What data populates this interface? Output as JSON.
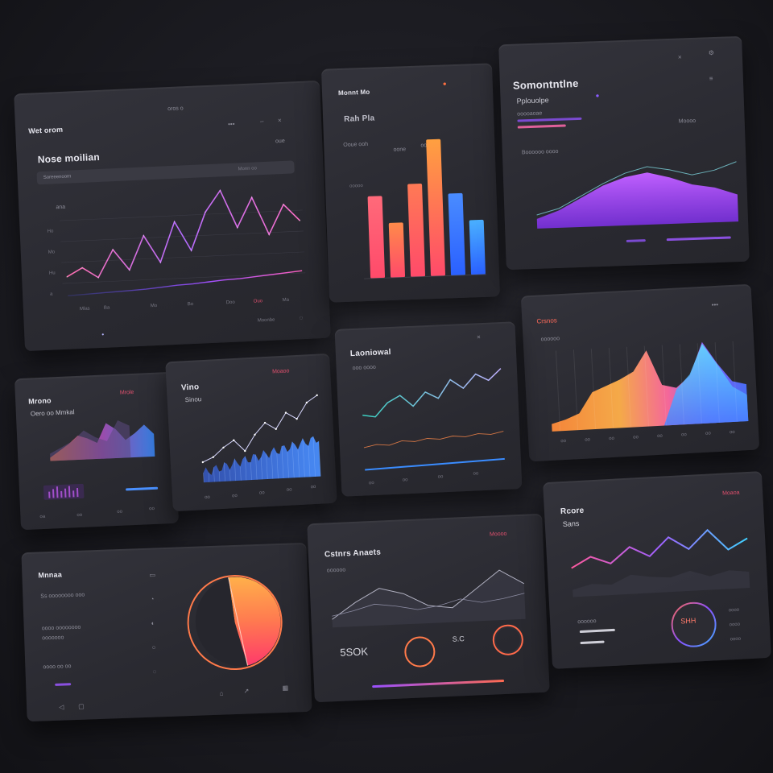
{
  "colors": {
    "background": "#1c1c22",
    "card": "#2d2d34",
    "purple": "#9b4dff",
    "pink": "#ff5fa8",
    "orange": "#ff8a3d",
    "cyan": "#3fc6ff",
    "blue": "#3a7bff",
    "red": "#e0506e"
  },
  "card1": {
    "header": "Wet orom",
    "top_label": "oros o",
    "title": "Nose moilian",
    "search_text": "Soreeenoorn",
    "search_right": "Monn oo",
    "mini_right": "oue",
    "axis_label": "ana",
    "y_ticks": [
      "Ho",
      "Mo",
      "Hu",
      "a"
    ],
    "x_ticks": [
      "Mlas",
      "Ba",
      "Mo",
      "Bo",
      "Doo",
      "Ouo",
      "Ma"
    ],
    "footer_right": "Moonbe"
  },
  "card2": {
    "title": "Monnt Mo",
    "sub": "Rah Pla",
    "row_a": "Ooue ooh",
    "row_b": "oone",
    "row_c": "oooo",
    "ylabel": "ooooo"
  },
  "card3": {
    "title": "Somontntlne",
    "sub": "Pplouolpe",
    "row": "ooooaoae",
    "right": "Moooo",
    "mid": "Boooooo oooo"
  },
  "card4": {
    "title": "Mrono",
    "sub": "Oero oo Mmkal",
    "accent": "Mrole",
    "x_ticks": [
      "oa",
      "oo",
      "oo",
      "oo"
    ]
  },
  "card5": {
    "title": "Vino",
    "sub": "Sinou",
    "accent": "Moaoo",
    "x_ticks": [
      "oo",
      "oo",
      "oo",
      "oo",
      "oo"
    ]
  },
  "card6": {
    "title": "Laoniowal",
    "sub": "ooo oooo",
    "x_ticks": [
      "oo",
      "oo",
      "oo",
      "oo"
    ]
  },
  "card7": {
    "title": "Crsnos",
    "sub": "oooooo",
    "x_ticks": [
      "oo",
      "oo",
      "oo",
      "oo",
      "oo",
      "oo",
      "oo",
      "oo"
    ]
  },
  "card8": {
    "title": "Mnnaa",
    "rows": [
      "Ss oooooooo ooo",
      "oooo oooooooo",
      "ooooooo",
      "oooo oo oo"
    ]
  },
  "card9": {
    "title": "Cstnrs Anaets",
    "sub": "oooooo",
    "accent": "Moooo",
    "big_number": "5SOK",
    "ring_a": "",
    "ring_b_value": "S.C",
    "ring_c": ""
  },
  "card10": {
    "title": "Rcore",
    "title2": "Sans",
    "accent": "Moaoa",
    "ring_value": "SHH",
    "rows": [
      "oooooo",
      "ooo",
      "oo"
    ],
    "right_rows": [
      "oooo",
      "oooo",
      "oooo"
    ]
  },
  "chart_data": [
    {
      "type": "line",
      "series": [
        {
          "values": [
            10,
            14,
            9,
            22,
            12,
            28,
            15,
            34,
            20,
            38,
            48,
            30,
            44,
            26,
            40,
            32
          ]
        },
        {
          "values": [
            3,
            4,
            5,
            6,
            7,
            8,
            10,
            12,
            13,
            15,
            17,
            18,
            20,
            22,
            24,
            26
          ]
        }
      ]
    },
    {
      "type": "bar",
      "values": [
        30,
        20,
        34,
        50,
        30,
        20
      ],
      "colors": [
        "#ff6a7a",
        "#ff8a4a",
        "#ff7a55",
        "#ffa040",
        "#4a8cff",
        "#4ab0ff"
      ]
    },
    {
      "type": "area",
      "values": [
        10,
        18,
        30,
        42,
        50,
        54,
        48,
        40,
        36,
        28
      ]
    },
    {
      "type": "area",
      "values": [
        8,
        12,
        18,
        40,
        46,
        52,
        60,
        82,
        44,
        40,
        52,
        88,
        64,
        44,
        40
      ]
    },
    {
      "type": "line",
      "series": [
        {
          "values": [
            18,
            22,
            30,
            36,
            26,
            40,
            50,
            44,
            58,
            52,
            66,
            72
          ]
        },
        {
          "values": [
            12,
            14,
            16,
            18,
            20,
            22,
            24,
            26,
            28,
            30,
            32,
            34
          ]
        }
      ]
    },
    {
      "type": "line",
      "series": [
        {
          "values": [
            30,
            28,
            40,
            46,
            36,
            48,
            42,
            58,
            50,
            62,
            56,
            66
          ]
        },
        {
          "values": [
            12,
            16,
            14,
            20,
            18,
            22,
            20,
            24,
            22,
            26,
            24,
            28
          ]
        }
      ]
    },
    {
      "type": "area",
      "values": [
        10,
        30,
        46,
        38,
        22,
        18,
        40,
        62,
        44
      ]
    },
    {
      "type": "pie",
      "values": [
        50,
        50
      ]
    },
    {
      "type": "line",
      "values": [
        20,
        28,
        22,
        34,
        26,
        40,
        30,
        44,
        28,
        36
      ]
    },
    {
      "type": "line",
      "values": [
        18,
        30,
        26,
        48,
        40,
        36,
        50,
        34,
        46,
        40
      ]
    }
  ]
}
